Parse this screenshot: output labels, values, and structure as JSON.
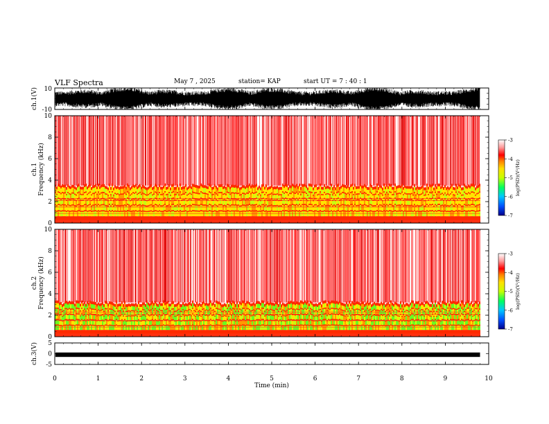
{
  "header": {
    "title": "VLF Spectra",
    "date": "May 7 , 2025",
    "station": "station= KAP",
    "start": "start UT =  7 : 40 : 1"
  },
  "chart_data": [
    {
      "type": "line",
      "name": "ch1-waveform",
      "ylabel": "ch.1(V)",
      "ylim": [
        -10,
        10
      ],
      "ytick_labels": [
        "10",
        "-10"
      ],
      "xlim": [
        0,
        10
      ],
      "data_end_x": 9.8,
      "description_values": "dense noise waveform between approximately -8 and 8 V"
    },
    {
      "type": "heatmap",
      "name": "ch1-spectrogram",
      "ylabel": "ch.1\nFrequency (kHz)",
      "ylabel_lines": [
        "ch.1",
        "Frequency (kHz)"
      ],
      "ylim": [
        0,
        10
      ],
      "yticks": [
        0,
        2,
        4,
        6,
        8,
        10
      ],
      "xlim": [
        0,
        10
      ],
      "data_end_x": 9.8,
      "band_top_khz": 3.5,
      "colorbar": {
        "label": "log(PSD)(V²/Hz)",
        "range": [
          -7,
          -3
        ],
        "ticks": [
          -3,
          -4,
          -5,
          -6,
          -7
        ]
      }
    },
    {
      "type": "heatmap",
      "name": "ch2-spectrogram",
      "ylabel": "ch.2\nFrequency (kHz)",
      "ylabel_lines": [
        "ch.2",
        "Frequency (kHz)"
      ],
      "ylim": [
        0,
        10
      ],
      "yticks": [
        0,
        2,
        4,
        6,
        8,
        10
      ],
      "xlim": [
        0,
        10
      ],
      "data_end_x": 9.8,
      "band_top_khz": 3.2,
      "colorbar": {
        "label": "log(PSD)(V²/Hz)",
        "range": [
          -7,
          -3
        ],
        "ticks": [
          -3,
          -4,
          -5,
          -6,
          -7
        ]
      }
    },
    {
      "type": "line",
      "name": "ch3-waveform",
      "ylabel": "ch.3(V)",
      "ylim": [
        -5,
        5
      ],
      "ytick_labels": [
        "5",
        "0",
        "-5"
      ],
      "xlim": [
        0,
        10
      ],
      "data_end_x": 9.8,
      "description_values": "nearly constant at about -0.5 V"
    }
  ],
  "xaxis": {
    "label": "Time (min)",
    "ticks": [
      0,
      1,
      2,
      3,
      4,
      5,
      6,
      7,
      8,
      9,
      10
    ]
  },
  "colors": {
    "colormap": [
      "#00008b",
      "#0050ff",
      "#00c8ff",
      "#00ff60",
      "#c8ff00",
      "#ffe000",
      "#ff8000",
      "#ff0000",
      "#ff9a9a",
      "#ffffff"
    ]
  }
}
